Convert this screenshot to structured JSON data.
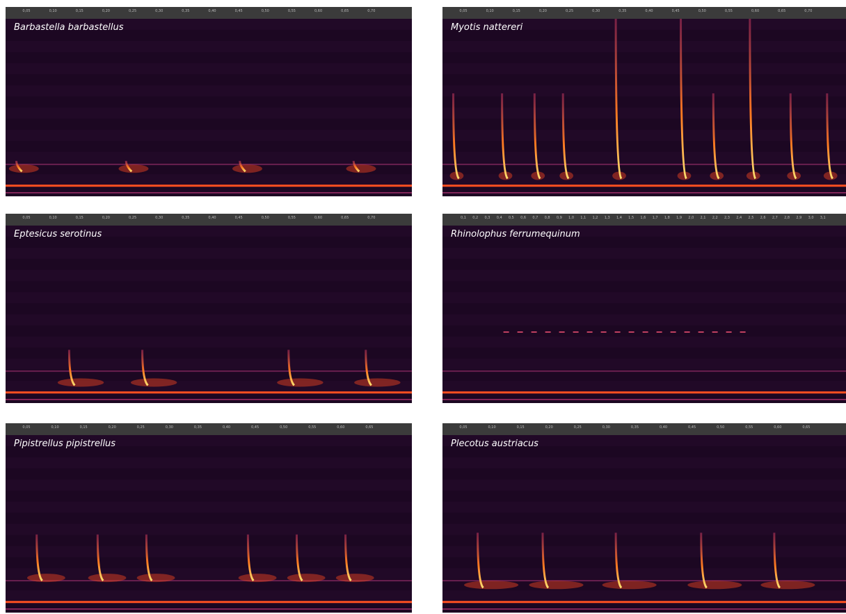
{
  "panels": [
    {
      "title": "Barbastella barbastellus",
      "time_ticks": [
        "0,05",
        "0,10",
        "0,15",
        "0,20",
        "0,25",
        "0,30",
        "0,35",
        "0,40",
        "0,45",
        "0,50",
        "0,55",
        "0,60",
        "0,65",
        "0,70"
      ]
    },
    {
      "title": "Myotis nattereri",
      "time_ticks": [
        "0,05",
        "0,10",
        "0,15",
        "0,20",
        "0,25",
        "0,30",
        "0,35",
        "0,40",
        "0,45",
        "0,50",
        "0,55",
        "0,60",
        "0,65",
        "0,70"
      ]
    },
    {
      "title": "Eptesicus serotinus",
      "time_ticks": [
        "0,05",
        "0,10",
        "0,15",
        "0,20",
        "0,25",
        "0,30",
        "0,35",
        "0,40",
        "0,45",
        "0,50",
        "0,55",
        "0,60",
        "0,65",
        "0,70"
      ]
    },
    {
      "title": "Rhinolophus ferrumequinum",
      "time_ticks": [
        "0,1",
        "0,2",
        "0,3",
        "0,4",
        "0,5",
        "0,6",
        "0,7",
        "0,8",
        "0,9",
        "1,0",
        "1,1",
        "1,2",
        "1,3",
        "1,4",
        "1,5",
        "1,6",
        "1,7",
        "1,8",
        "1,9",
        "2,0",
        "2,1",
        "2,2",
        "2,3",
        "2,4",
        "2,5",
        "2,6",
        "2,7",
        "2,8",
        "2,9",
        "3,0",
        "3,1"
      ]
    },
    {
      "title": "Pipistrellus pipistrellus",
      "time_ticks": [
        "0,05",
        "0,10",
        "0,15",
        "0,20",
        "0,25",
        "0,30",
        "0,35",
        "0,40",
        "0,45",
        "0,50",
        "0,55",
        "0,60",
        "0,65"
      ]
    },
    {
      "title": "Plecotus austriacus",
      "time_ticks": [
        "0,05",
        "0,10",
        "0,15",
        "0,20",
        "0,25",
        "0,30",
        "0,35",
        "0,40",
        "0,45",
        "0,50",
        "0,55",
        "0,60",
        "0,65"
      ]
    }
  ]
}
